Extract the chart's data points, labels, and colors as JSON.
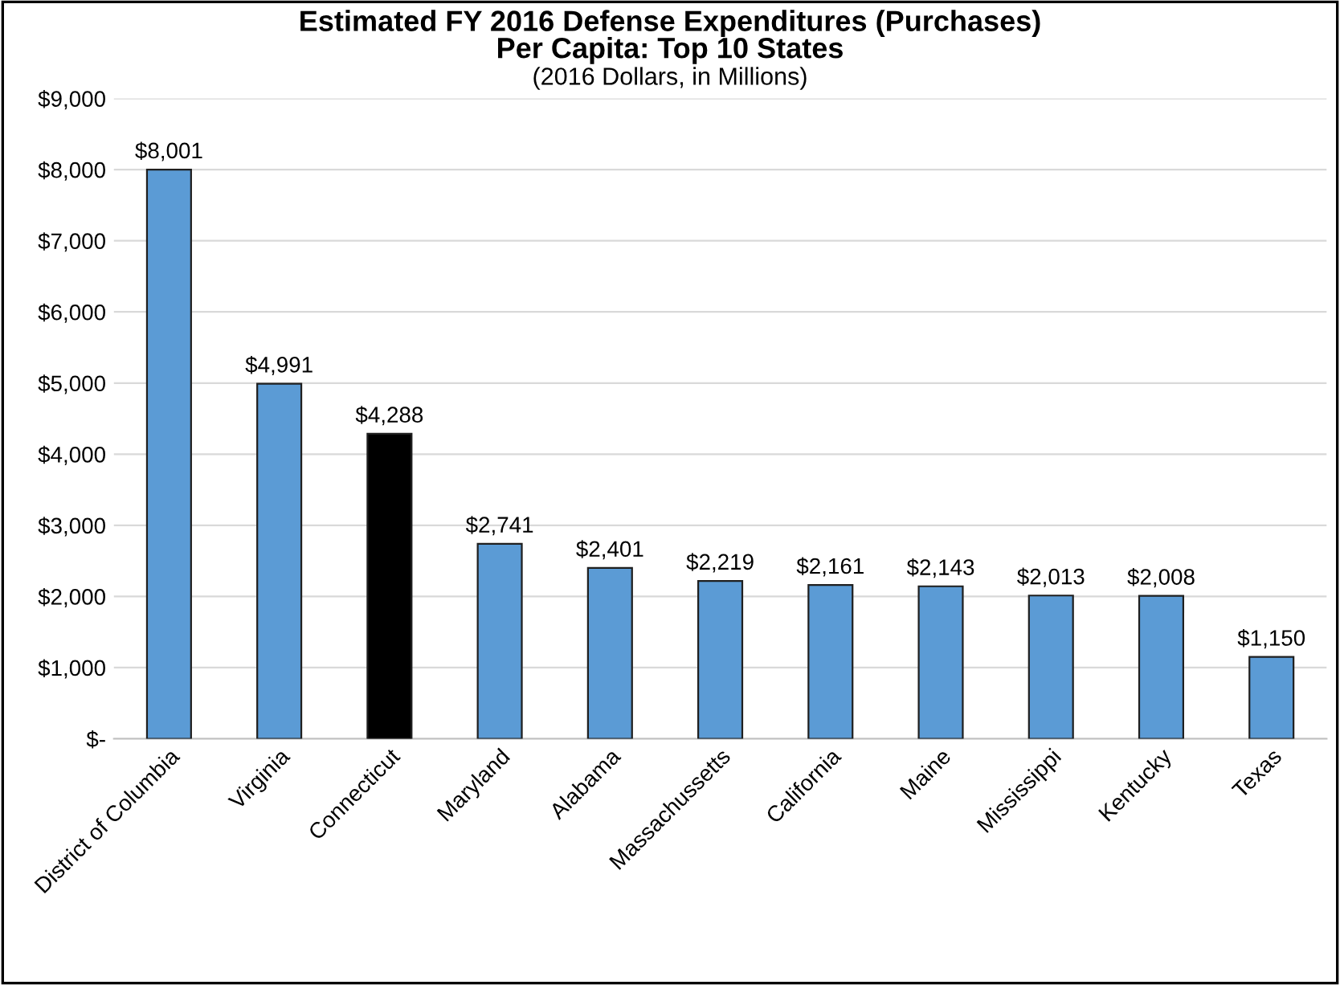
{
  "chart_data": {
    "type": "bar",
    "title": "Estimated FY 2016 Defense Expenditures (Purchases)\nPer Capita: Top 10 States",
    "subtitle": "(2016 Dollars, in Millions)",
    "categories": [
      "District of Columbia",
      "Virginia",
      "Connecticut",
      "Maryland",
      "Alabama",
      "Massachussetts",
      "California",
      "Maine",
      "Mississippi",
      "Kentucky",
      "Texas"
    ],
    "values": [
      8001,
      4991,
      4288,
      2741,
      2401,
      2219,
      2161,
      2143,
      2013,
      2008,
      1150
    ],
    "colors": [
      "#5b9bd5",
      "#5b9bd5",
      "#000000",
      "#5b9bd5",
      "#5b9bd5",
      "#5b9bd5",
      "#5b9bd5",
      "#5b9bd5",
      "#5b9bd5",
      "#5b9bd5",
      "#5b9bd5"
    ],
    "value_labels": [
      "$8,001",
      "$4,991",
      "$4,288",
      "$2,741",
      "$2,401",
      "$2,219",
      "$2,161",
      "$2,143",
      "$2,013",
      "$2,008",
      "$1,150"
    ],
    "ylim": [
      0,
      9000
    ],
    "yticks": [
      {
        "value": 0,
        "label": "$-"
      },
      {
        "value": 1000,
        "label": "$1,000"
      },
      {
        "value": 2000,
        "label": "$2,000"
      },
      {
        "value": 3000,
        "label": "$3,000"
      },
      {
        "value": 4000,
        "label": "$4,000"
      },
      {
        "value": 5000,
        "label": "$5,000"
      },
      {
        "value": 6000,
        "label": "$6,000"
      },
      {
        "value": 7000,
        "label": "$7,000"
      },
      {
        "value": 8000,
        "label": "$8,000"
      },
      {
        "value": 9000,
        "label": "$9,000"
      }
    ],
    "grid": "y",
    "legend": false
  }
}
